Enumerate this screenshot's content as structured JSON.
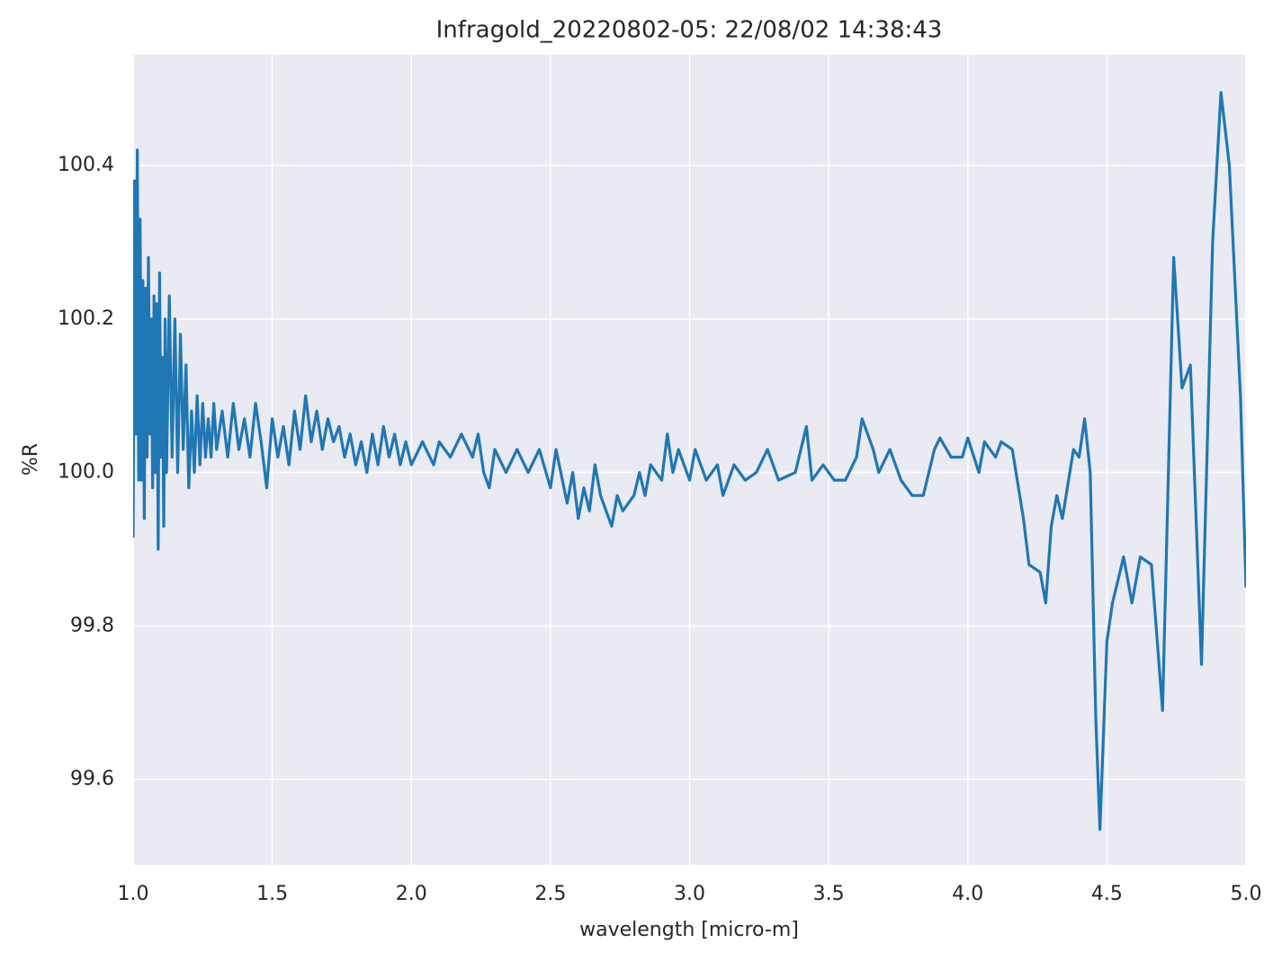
{
  "chart_data": {
    "type": "line",
    "title": "Infragold_20220802-05:  22/08/02 14:38:43",
    "xlabel": "wavelength [micro-m]",
    "ylabel": "%R",
    "color": "#1f77b4",
    "grid": true,
    "xlim": [
      1.0,
      5.0
    ],
    "ylim": [
      99.489,
      100.544
    ],
    "xticks": [
      {
        "value": 1.0,
        "label": "1.0"
      },
      1.5,
      {
        "value": 2.0,
        "label": "2.0"
      },
      2.5,
      {
        "value": 3.0,
        "label": "3.0"
      },
      3.5,
      {
        "value": 4.0,
        "label": "4.0"
      },
      4.5,
      {
        "value": 5.0,
        "label": "5.0"
      }
    ],
    "yticks": [
      99.6,
      99.8,
      {
        "value": 100.0,
        "label": "100.0"
      },
      100.2,
      100.4
    ],
    "x": [
      1.0,
      1.005,
      1.01,
      1.015,
      1.02,
      1.025,
      1.03,
      1.035,
      1.04,
      1.045,
      1.05,
      1.055,
      1.06,
      1.065,
      1.07,
      1.075,
      1.08,
      1.085,
      1.09,
      1.095,
      1.1,
      1.105,
      1.11,
      1.115,
      1.12,
      1.13,
      1.14,
      1.15,
      1.16,
      1.17,
      1.18,
      1.19,
      1.2,
      1.21,
      1.22,
      1.23,
      1.24,
      1.25,
      1.26,
      1.27,
      1.28,
      1.29,
      1.3,
      1.32,
      1.34,
      1.36,
      1.38,
      1.4,
      1.42,
      1.44,
      1.46,
      1.48,
      1.5,
      1.52,
      1.54,
      1.56,
      1.58,
      1.6,
      1.62,
      1.64,
      1.66,
      1.68,
      1.7,
      1.72,
      1.74,
      1.76,
      1.78,
      1.8,
      1.82,
      1.84,
      1.86,
      1.88,
      1.9,
      1.92,
      1.94,
      1.96,
      1.98,
      2.0,
      2.04,
      2.08,
      2.1,
      2.14,
      2.18,
      2.22,
      2.24,
      2.26,
      2.28,
      2.3,
      2.34,
      2.38,
      2.42,
      2.46,
      2.5,
      2.52,
      2.56,
      2.58,
      2.6,
      2.62,
      2.64,
      2.66,
      2.68,
      2.7,
      2.72,
      2.74,
      2.76,
      2.8,
      2.82,
      2.84,
      2.86,
      2.9,
      2.92,
      2.94,
      2.96,
      3.0,
      3.02,
      3.06,
      3.1,
      3.12,
      3.16,
      3.2,
      3.24,
      3.28,
      3.32,
      3.38,
      3.42,
      3.44,
      3.48,
      3.52,
      3.56,
      3.6,
      3.62,
      3.64,
      3.66,
      3.68,
      3.72,
      3.76,
      3.8,
      3.84,
      3.88,
      3.9,
      3.94,
      3.98,
      4.0,
      4.04,
      4.06,
      4.1,
      4.12,
      4.16,
      4.2,
      4.22,
      4.26,
      4.28,
      4.3,
      4.32,
      4.34,
      4.38,
      4.4,
      4.42,
      4.44,
      4.46,
      4.475,
      4.5,
      4.52,
      4.56,
      4.59,
      4.62,
      4.66,
      4.7,
      4.74,
      4.77,
      4.8,
      4.84,
      4.88,
      4.91,
      4.94,
      4.98,
      5.0
    ],
    "values": [
      99.915,
      100.38,
      100.05,
      100.42,
      99.99,
      100.33,
      99.99,
      100.25,
      99.94,
      100.24,
      100.02,
      100.28,
      100.05,
      100.2,
      99.98,
      100.23,
      100.0,
      100.22,
      99.9,
      100.26,
      100.02,
      100.15,
      99.93,
      100.2,
      100.0,
      100.23,
      100.02,
      100.2,
      100.0,
      100.18,
      100.03,
      100.14,
      99.98,
      100.08,
      100.0,
      100.1,
      100.01,
      100.09,
      100.02,
      100.07,
      100.02,
      100.09,
      100.03,
      100.08,
      100.02,
      100.09,
      100.03,
      100.07,
      100.02,
      100.09,
      100.04,
      99.98,
      100.07,
      100.02,
      100.06,
      100.01,
      100.08,
      100.03,
      100.1,
      100.04,
      100.08,
      100.03,
      100.07,
      100.04,
      100.06,
      100.02,
      100.05,
      100.01,
      100.04,
      100.0,
      100.05,
      100.01,
      100.06,
      100.02,
      100.05,
      100.01,
      100.04,
      100.01,
      100.04,
      100.01,
      100.04,
      100.02,
      100.05,
      100.02,
      100.05,
      100.0,
      99.98,
      100.03,
      100.0,
      100.03,
      100.0,
      100.03,
      99.98,
      100.03,
      99.96,
      100.0,
      99.94,
      99.98,
      99.95,
      100.01,
      99.97,
      99.95,
      99.93,
      99.97,
      99.95,
      99.97,
      100.0,
      99.97,
      100.01,
      99.99,
      100.05,
      100.0,
      100.03,
      99.99,
      100.03,
      99.99,
      100.01,
      99.97,
      100.01,
      99.99,
      100.0,
      100.03,
      99.99,
      100.0,
      100.06,
      99.99,
      100.01,
      99.99,
      99.99,
      100.02,
      100.07,
      100.05,
      100.03,
      100.0,
      100.03,
      99.99,
      99.97,
      99.97,
      100.03,
      100.045,
      100.02,
      100.02,
      100.045,
      100.0,
      100.04,
      100.02,
      100.04,
      100.03,
      99.94,
      99.88,
      99.87,
      99.83,
      99.93,
      99.97,
      99.94,
      100.03,
      100.02,
      100.07,
      100.0,
      99.68,
      99.535,
      99.78,
      99.83,
      99.89,
      99.83,
      99.89,
      99.88,
      99.69,
      100.28,
      100.11,
      100.14,
      99.75,
      100.3,
      100.495,
      100.4,
      100.1,
      99.85
    ]
  }
}
